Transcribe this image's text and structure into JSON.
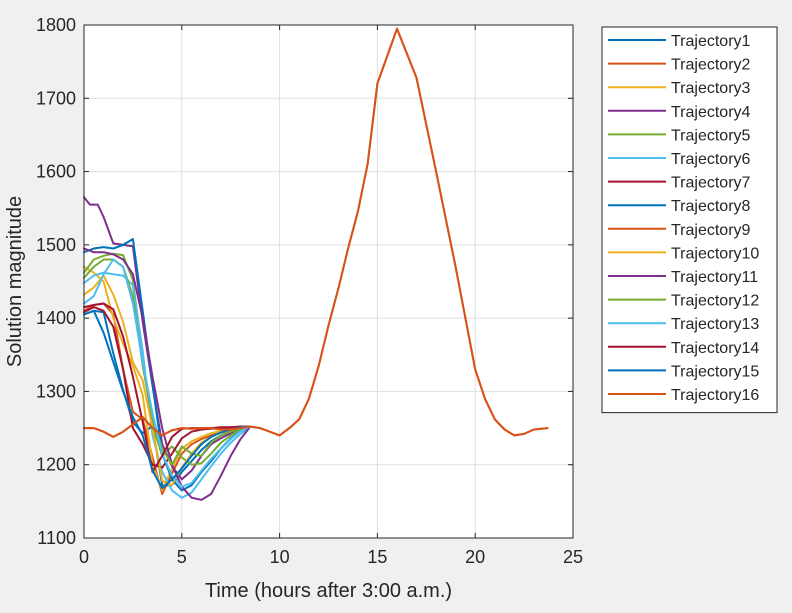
{
  "chart_data": {
    "type": "line",
    "xlabel": "Time (hours after 3:00 a.m.)",
    "ylabel": "Solution magnitude",
    "xlim": [
      0,
      25
    ],
    "ylim": [
      1100,
      1800
    ],
    "xticks": [
      0,
      5,
      10,
      15,
      20,
      25
    ],
    "yticks": [
      1100,
      1200,
      1300,
      1400,
      1500,
      1600,
      1700,
      1800
    ],
    "grid": true,
    "legend_position": "outside-right",
    "colors": [
      "#0072BD",
      "#D95319",
      "#EDB120",
      "#7E2F8E",
      "#77AC30",
      "#4DBEEE",
      "#A2142F"
    ],
    "series": [
      {
        "name": "Trajectory1",
        "x": [
          0,
          0.5,
          1,
          1.5,
          2,
          2.5,
          3,
          3.5,
          4,
          4.5,
          5,
          5.5,
          6,
          6.5,
          7,
          7.5,
          8,
          8.5
        ],
        "y": [
          1405,
          1410,
          1408,
          1352,
          1302,
          1258,
          1243,
          1253,
          1172,
          1172,
          1190,
          1205,
          1220,
          1232,
          1240,
          1245,
          1250,
          1252
        ]
      },
      {
        "name": "Trajectory2",
        "x": [
          0,
          0.5,
          1,
          1.5,
          2,
          2.5,
          3,
          3.5,
          4,
          4.5,
          5,
          5.5,
          6,
          6.5,
          7,
          7.5,
          8,
          8.5
        ],
        "y": [
          1410,
          1418,
          1420,
          1405,
          1330,
          1272,
          1262,
          1210,
          1160,
          1188,
          1215,
          1228,
          1235,
          1240,
          1244,
          1247,
          1250,
          1252
        ]
      },
      {
        "name": "Trajectory3",
        "x": [
          0,
          0.5,
          1,
          1.5,
          2,
          2.5,
          3,
          3.5,
          4,
          4.5,
          5,
          5.5,
          6,
          6.5,
          7,
          7.5,
          8,
          8.5
        ],
        "y": [
          1470,
          1462,
          1450,
          1400,
          1365,
          1335,
          1295,
          1200,
          1165,
          1195,
          1222,
          1232,
          1238,
          1243,
          1246,
          1248,
          1250,
          1252
        ]
      },
      {
        "name": "Trajectory4",
        "x": [
          0,
          0.3,
          0.7,
          1,
          1.5,
          2,
          2.5,
          3,
          3.5,
          4,
          4.5,
          5,
          5.5,
          6,
          6.5,
          7,
          7.5,
          8,
          8.5
        ],
        "y": [
          1565,
          1555,
          1555,
          1538,
          1502,
          1500,
          1498,
          1395,
          1308,
          1228,
          1198,
          1180,
          1192,
          1212,
          1228,
          1236,
          1243,
          1250,
          1252
        ]
      },
      {
        "name": "Trajectory5",
        "x": [
          0,
          0.5,
          1,
          1.5,
          2,
          2.5,
          3,
          3.5,
          4,
          4.5,
          5,
          5.5,
          6,
          6.5,
          7,
          7.5,
          8,
          8.5
        ],
        "y": [
          1462,
          1480,
          1485,
          1488,
          1486,
          1452,
          1345,
          1255,
          1212,
          1225,
          1210,
          1200,
          1202,
          1215,
          1230,
          1240,
          1248,
          1252
        ]
      },
      {
        "name": "Trajectory6",
        "x": [
          0,
          0.5,
          1,
          1.5,
          2,
          2.5,
          3,
          3.5,
          4,
          4.5,
          5,
          5.5,
          6,
          6.5,
          7,
          7.5,
          8,
          8.5
        ],
        "y": [
          1448,
          1458,
          1462,
          1460,
          1458,
          1445,
          1355,
          1240,
          1190,
          1165,
          1155,
          1162,
          1180,
          1198,
          1215,
          1230,
          1242,
          1252
        ]
      },
      {
        "name": "Trajectory7",
        "x": [
          0,
          0.5,
          1,
          1.5,
          2,
          2.5,
          3,
          3.5,
          4,
          4.5,
          5,
          5.5,
          6,
          6.5,
          7,
          7.5,
          8,
          8.5
        ],
        "y": [
          1408,
          1415,
          1410,
          1388,
          1330,
          1250,
          1228,
          1200,
          1196,
          1215,
          1236,
          1245,
          1248,
          1249,
          1250,
          1251,
          1252,
          1252
        ]
      },
      {
        "name": "Trajectory8",
        "x": [
          0,
          0.5,
          1,
          1.5,
          2,
          2.5,
          3,
          3.5,
          4,
          4.5,
          5,
          5.5,
          6,
          6.5,
          7,
          7.5,
          8,
          8.5
        ],
        "y": [
          1490,
          1495,
          1497,
          1495,
          1500,
          1508,
          1410,
          1310,
          1215,
          1180,
          1165,
          1172,
          1190,
          1205,
          1222,
          1236,
          1246,
          1252
        ]
      },
      {
        "name": "Trajectory9",
        "x": [
          0,
          0.5,
          1,
          1.5,
          2,
          2.5,
          3,
          3.5,
          4,
          4.5,
          5,
          5.5,
          6,
          6.5,
          7,
          7.5,
          8,
          8.5,
          9,
          9.5,
          10,
          10.5,
          11,
          11.5,
          12,
          12.5,
          13,
          13.5,
          14,
          14.5,
          15,
          16,
          17,
          18,
          19,
          20,
          20.5,
          21,
          21.5,
          22,
          22.5,
          23,
          23.7
        ],
        "y": [
          1250,
          1250,
          1245,
          1238,
          1245,
          1255,
          1265,
          1250,
          1240,
          1247,
          1250,
          1249,
          1250,
          1250,
          1248,
          1248,
          1250,
          1252,
          1250,
          1245,
          1240,
          1250,
          1262,
          1290,
          1335,
          1390,
          1440,
          1495,
          1545,
          1610,
          1720,
          1795,
          1728,
          1600,
          1470,
          1330,
          1290,
          1262,
          1248,
          1240,
          1242,
          1248,
          1250
        ]
      },
      {
        "name": "Trajectory10",
        "x": [
          0,
          0.5,
          1,
          1.5,
          2,
          2.5,
          3,
          3.5,
          4,
          4.5,
          5,
          5.5,
          6,
          6.5,
          7,
          7.5,
          8,
          8.5
        ],
        "y": [
          1432,
          1442,
          1458,
          1432,
          1395,
          1340,
          1315,
          1250,
          1178,
          1172,
          1196,
          1215,
          1230,
          1238,
          1244,
          1247,
          1250,
          1252
        ]
      },
      {
        "name": "Trajectory11",
        "x": [
          0,
          0.5,
          1,
          1.5,
          2,
          2.5,
          3,
          3.5,
          4,
          4.5,
          5,
          5.5,
          6,
          6.5,
          7,
          7.5,
          8,
          8.5
        ],
        "y": [
          1495,
          1490,
          1490,
          1487,
          1480,
          1460,
          1400,
          1320,
          1250,
          1200,
          1170,
          1155,
          1152,
          1160,
          1185,
          1212,
          1235,
          1252
        ]
      },
      {
        "name": "Trajectory12",
        "x": [
          0,
          0.5,
          1,
          1.5,
          2,
          2.5,
          3,
          3.5,
          4,
          4.5,
          5,
          5.5,
          6,
          6.5,
          7,
          7.5,
          8,
          8.5
        ],
        "y": [
          1455,
          1470,
          1480,
          1480,
          1470,
          1430,
          1335,
          1262,
          1222,
          1200,
          1225,
          1215,
          1212,
          1230,
          1240,
          1245,
          1250,
          1252
        ]
      },
      {
        "name": "Trajectory13",
        "x": [
          0,
          0.5,
          1,
          1.5,
          2,
          2.5,
          3,
          3.5,
          4,
          4.5,
          5,
          5.5,
          6,
          6.5,
          7,
          7.5,
          8,
          8.5
        ],
        "y": [
          1420,
          1430,
          1460,
          1480,
          1470,
          1420,
          1340,
          1270,
          1215,
          1185,
          1170,
          1175,
          1192,
          1208,
          1222,
          1235,
          1246,
          1252
        ]
      },
      {
        "name": "Trajectory14",
        "x": [
          0,
          0.5,
          1,
          1.5,
          2,
          2.5,
          3,
          3.5,
          4,
          4.5,
          5,
          5.5,
          6,
          6.5,
          7,
          7.5,
          8,
          8.5
        ],
        "y": [
          1415,
          1418,
          1420,
          1412,
          1375,
          1320,
          1258,
          1190,
          1212,
          1238,
          1249,
          1250,
          1250,
          1250,
          1251,
          1251,
          1252,
          1252
        ]
      },
      {
        "name": "Trajectory15",
        "x": [
          0,
          0.5,
          1,
          1.5,
          2,
          2.5,
          3,
          3.5,
          4,
          4.5,
          5,
          5.5,
          6,
          6.5,
          7,
          7.5,
          8,
          8.5
        ],
        "y": [
          1405,
          1410,
          1380,
          1340,
          1300,
          1265,
          1240,
          1192,
          1168,
          1180,
          1195,
          1212,
          1228,
          1238,
          1244,
          1248,
          1251,
          1252
        ]
      },
      {
        "name": "Trajectory16",
        "x": [
          0,
          0.5,
          1,
          1.5,
          2,
          2.5,
          3,
          3.5,
          4,
          4.5,
          5,
          5.5,
          6,
          6.5,
          7,
          7.5,
          8,
          8.5,
          9,
          9.5,
          10,
          10.5,
          11,
          11.5,
          12,
          12.5,
          13,
          13.5,
          14,
          14.5,
          15,
          16,
          17,
          18,
          19,
          20,
          20.5,
          21,
          21.5,
          22,
          22.5,
          23,
          23.7
        ],
        "y": [
          1250,
          1250,
          1245,
          1238,
          1245,
          1255,
          1265,
          1250,
          1240,
          1247,
          1250,
          1249,
          1250,
          1250,
          1248,
          1248,
          1250,
          1252,
          1250,
          1245,
          1240,
          1250,
          1262,
          1290,
          1335,
          1390,
          1440,
          1495,
          1545,
          1610,
          1720,
          1795,
          1728,
          1600,
          1470,
          1330,
          1290,
          1262,
          1248,
          1240,
          1242,
          1248,
          1250
        ]
      }
    ]
  }
}
